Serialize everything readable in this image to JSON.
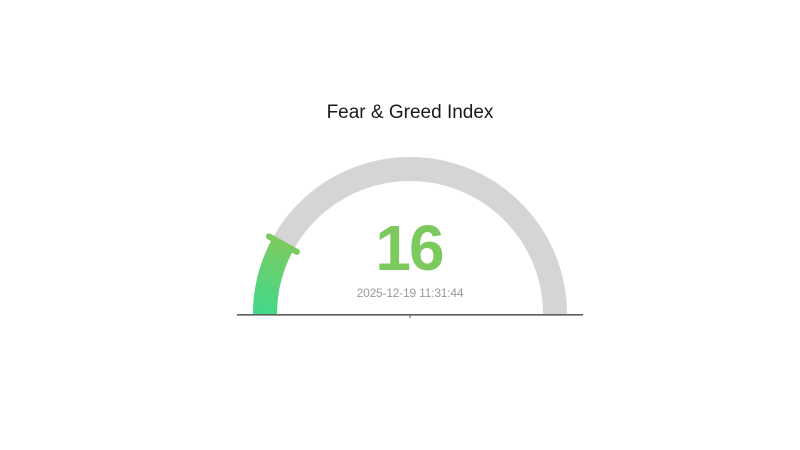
{
  "page": {
    "background_color": "#ffffff"
  },
  "chart_data": {
    "type": "gauge",
    "title": "Fear & Greed Index",
    "value": 16,
    "min": 0,
    "max": 100,
    "timestamp": "2025-12-19 11:31:44",
    "start_angle_deg": 180,
    "end_angle_deg": 0,
    "legend": "none",
    "grid": "off",
    "colors": {
      "track": "#d5d5d5",
      "progress_gradient_start": "#40d98c",
      "progress_gradient_end": "#7ecb60",
      "progress_marker": "#79ca5f",
      "value_text": "#7cc95e",
      "timestamp_text": "#9a9a9a",
      "title_text": "#1a1a1a",
      "baseline": "#5e5e5e"
    }
  }
}
